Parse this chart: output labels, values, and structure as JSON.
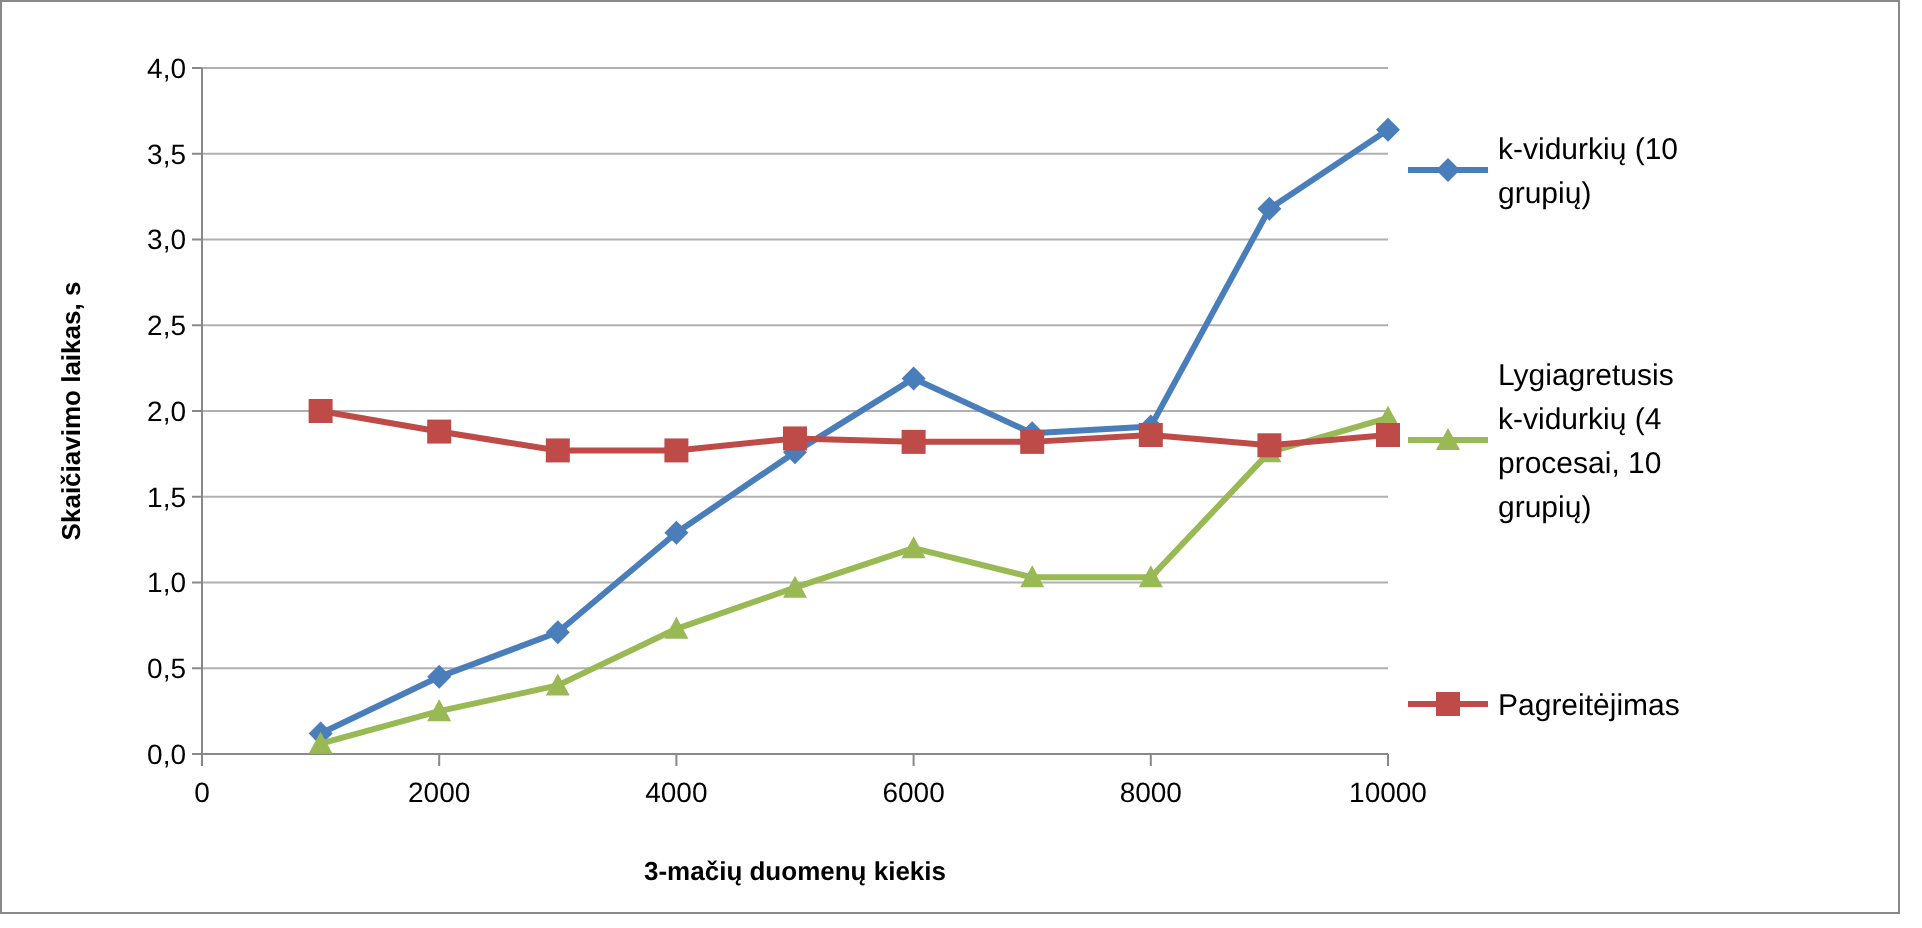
{
  "chart_data": {
    "type": "line",
    "xlabel": "3-mačių duomenų kiekis",
    "ylabel": "Skaičiavimo laikas, s",
    "x": [
      1000,
      2000,
      3000,
      4000,
      5000,
      6000,
      7000,
      8000,
      9000,
      10000
    ],
    "series": [
      {
        "name": "k-vidurkių (10 grupių)",
        "color": "#4a7ebb",
        "marker": "diamond",
        "values": [
          0.12,
          0.45,
          0.71,
          1.29,
          1.76,
          2.19,
          1.87,
          1.91,
          3.18,
          3.64
        ]
      },
      {
        "name": "Lygiagretusis k-vidurkių (4 procesai, 10 grupių)",
        "color": "#98b954",
        "marker": "triangle",
        "values": [
          0.06,
          0.25,
          0.4,
          0.73,
          0.97,
          1.2,
          1.03,
          1.03,
          1.76,
          1.96
        ]
      },
      {
        "name": "Pagreitėjimas",
        "color": "#be4b48",
        "marker": "square",
        "values": [
          2.0,
          1.88,
          1.77,
          1.77,
          1.84,
          1.82,
          1.82,
          1.86,
          1.8,
          1.86
        ]
      }
    ],
    "xlim": [
      0,
      10000
    ],
    "xticks": [
      0,
      2000,
      4000,
      6000,
      8000,
      10000
    ],
    "ylim": [
      0,
      4
    ],
    "yticks": [
      {
        "value": 0,
        "label": "0,0"
      },
      {
        "value": 0.5,
        "label": "0,5"
      },
      {
        "value": 1,
        "label": "1,0"
      },
      {
        "value": 1.5,
        "label": "1,5"
      },
      {
        "value": 2,
        "label": "2,0"
      },
      {
        "value": 2.5,
        "label": "2,5"
      },
      {
        "value": 3,
        "label": "3,0"
      },
      {
        "value": 3.5,
        "label": "3,5"
      },
      {
        "value": 4,
        "label": "4,0"
      }
    ],
    "grid": "y",
    "legend": "right",
    "line_style": "solid"
  }
}
